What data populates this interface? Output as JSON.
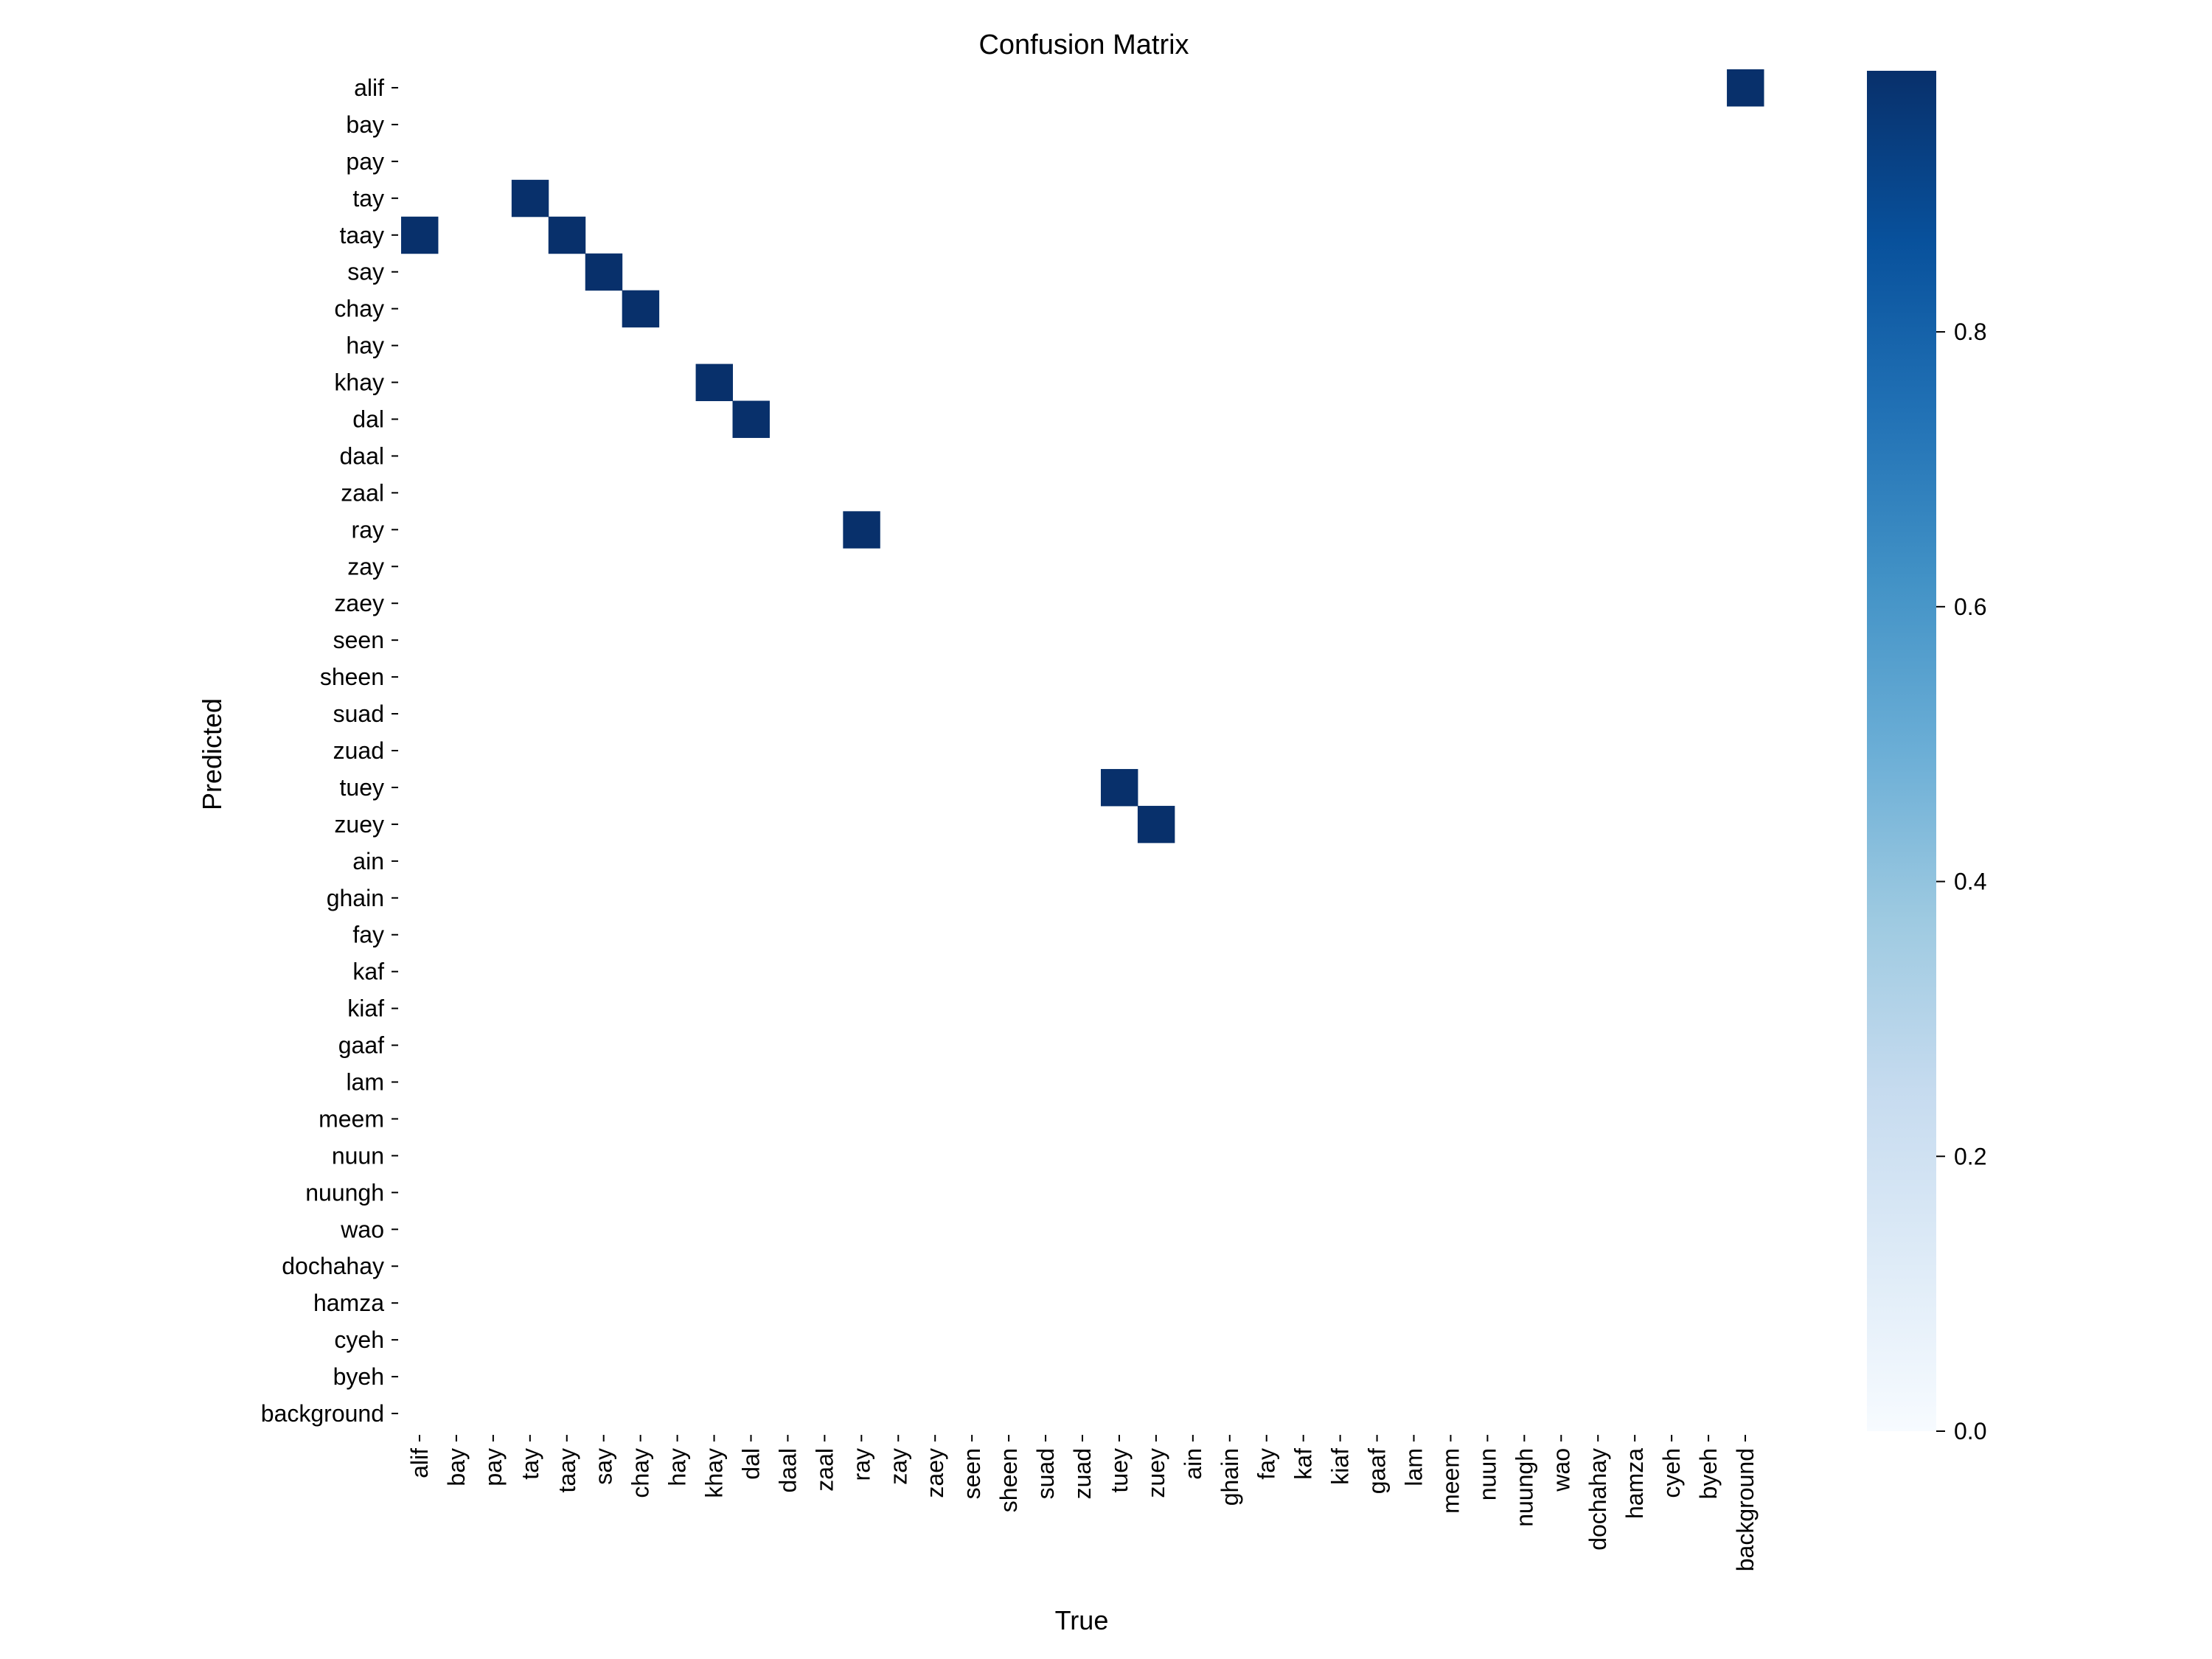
{
  "chart_data": {
    "type": "heatmap",
    "title": "Confusion Matrix",
    "xlabel": "True",
    "ylabel": "Predicted",
    "labels": [
      "alif",
      "bay",
      "pay",
      "tay",
      "taay",
      "say",
      "chay",
      "hay",
      "khay",
      "dal",
      "daal",
      "zaal",
      "ray",
      "zay",
      "zaey",
      "seen",
      "sheen",
      "suad",
      "zuad",
      "tuey",
      "zuey",
      "ain",
      "ghain",
      "fay",
      "kaf",
      "kiaf",
      "gaaf",
      "lam",
      "meem",
      "nuun",
      "nuungh",
      "wao",
      "dochahay",
      "hamza",
      "cyeh",
      "byeh",
      "background"
    ],
    "cells": [
      {
        "predicted": "alif",
        "true": "background",
        "value": 0.99
      },
      {
        "predicted": "tay",
        "true": "tay",
        "value": 0.99
      },
      {
        "predicted": "taay",
        "true": "alif",
        "value": 0.99
      },
      {
        "predicted": "taay",
        "true": "taay",
        "value": 0.99
      },
      {
        "predicted": "say",
        "true": "say",
        "value": 0.99
      },
      {
        "predicted": "chay",
        "true": "chay",
        "value": 0.99
      },
      {
        "predicted": "khay",
        "true": "khay",
        "value": 0.99
      },
      {
        "predicted": "dal",
        "true": "dal",
        "value": 0.99
      },
      {
        "predicted": "ray",
        "true": "ray",
        "value": 0.99
      },
      {
        "predicted": "tuey",
        "true": "tuey",
        "value": 0.99
      },
      {
        "predicted": "zuey",
        "true": "zuey",
        "value": 0.99
      }
    ],
    "colorbar": {
      "range": [
        0,
        0.99
      ],
      "ticks": [
        "0.0",
        "0.2",
        "0.4",
        "0.6",
        "0.8"
      ],
      "colormap": "Blues"
    },
    "grid": false
  }
}
